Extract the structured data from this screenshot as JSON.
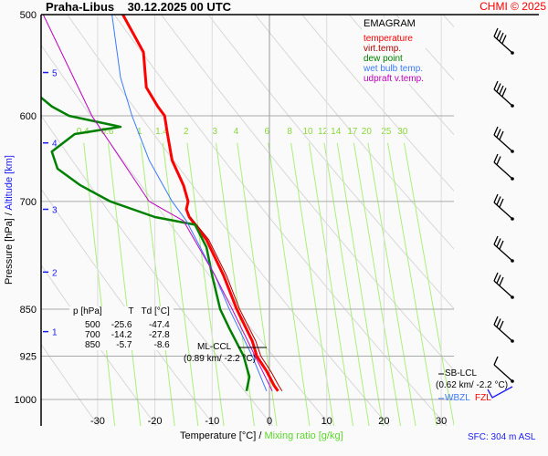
{
  "header": {
    "station": "Praha-Libus",
    "datetime": "30.12.2025 00 UTC",
    "copyright": "CHMI © 2025"
  },
  "footer": {
    "xlabel_temp": "Temperature [°C]",
    "separator": "/",
    "xlabel_mix": "Mixing ratio [g/kg]",
    "sfc": "SFC: 304 m ASL"
  },
  "ylabel": {
    "pressure": "Pressure [hPa]",
    "separator": "/",
    "altitude": "Altitude [km]"
  },
  "legend": {
    "title": "EMAGRAM",
    "items": [
      {
        "label": "temperature",
        "color": "#ff0000"
      },
      {
        "label": "virt.temp.",
        "color": "#b00000"
      },
      {
        "label": "dew point",
        "color": "#008000"
      },
      {
        "label": "wet bulb temp.",
        "color": "#3a7aff"
      },
      {
        "label": "udpraft v.temp.",
        "color": "#c000c0"
      }
    ]
  },
  "table": {
    "headers": [
      "p [hPa]",
      "T",
      "Td [°C]"
    ],
    "rows": [
      [
        "500",
        "-25.6",
        "-47.4"
      ],
      [
        "700",
        "-14.2",
        "-27.8"
      ],
      [
        "850",
        "-5.7",
        "-8.6"
      ]
    ]
  },
  "annotations": {
    "ml_ccl": "ML-CCL",
    "ml_ccl_val": "(0.89 km/ -2.2 °C)",
    "sb_lcl": "SB-LCL",
    "sb_lcl_val": "(0.62 km/ -2.2 °C)",
    "fzl": "FZL",
    "wbzl": "WBZL"
  },
  "chart_data": {
    "type": "line",
    "diagram": "emagram",
    "xlim": [
      -40,
      32
    ],
    "ylim_hpa": [
      500,
      1050
    ],
    "y_scale": "log",
    "x_ticks": [
      -30,
      -20,
      -10,
      0,
      10,
      20,
      30
    ],
    "y_ticks": [
      500,
      600,
      700,
      850,
      925,
      1000
    ],
    "altitude_ticks_km": [
      1,
      2,
      3,
      4,
      5
    ],
    "altitude_tick_pressures": [
      885,
      795,
      710,
      630,
      555
    ],
    "mixing_ratio_labels": [
      "0.4",
      "0.6",
      "1",
      "1.4",
      "2",
      "3",
      "4",
      "6",
      "8",
      "10",
      "12",
      "14",
      "17",
      "20",
      "25",
      "30"
    ],
    "series": [
      {
        "name": "temperature",
        "color": "#ff0000",
        "p": [
          500,
          535,
          570,
          590,
          600,
          620,
          650,
          680,
          700,
          710,
          720,
          750,
          800,
          850,
          900,
          925,
          950,
          975,
          985
        ],
        "t": [
          -25.6,
          -22,
          -21.5,
          -19.5,
          -18.3,
          -17.8,
          -17,
          -15,
          -14.2,
          -14.5,
          -14,
          -11,
          -8,
          -5.7,
          -3,
          -2.2,
          -0.5,
          0.8,
          1.5
        ]
      },
      {
        "name": "virt.temp.",
        "color": "#b00000",
        "p": [
          720,
          750,
          800,
          850,
          900,
          925,
          950,
          975,
          985
        ],
        "t": [
          -13.8,
          -10.6,
          -7.5,
          -5.2,
          -2.4,
          -1.5,
          0.2,
          1.6,
          2.2
        ]
      },
      {
        "name": "dew point",
        "color": "#008000",
        "p": [
          580,
          590,
          600,
          612,
          620,
          640,
          660,
          680,
          700,
          720,
          730,
          760,
          800,
          850,
          880,
          925,
          960,
          985
        ],
        "t": [
          -40,
          -38,
          -35,
          -26,
          -34,
          -38,
          -37,
          -33,
          -27.8,
          -20,
          -13,
          -11,
          -10,
          -8.6,
          -7,
          -4.5,
          -3.5,
          -4
        ]
      },
      {
        "name": "wet bulb temp.",
        "color": "#3a7aff",
        "p": [
          500,
          560,
          600,
          650,
          700,
          725,
          800,
          850,
          925,
          985
        ],
        "t": [
          -27.5,
          -26,
          -24,
          -21,
          -17,
          -14.5,
          -9.5,
          -7,
          -3,
          -0.5
        ]
      },
      {
        "name": "udpraft v.temp.",
        "color": "#c000c0",
        "p": [
          500,
          600,
          700,
          725,
          800,
          850,
          925,
          985
        ],
        "t": [
          -39.5,
          -31,
          -21,
          -15,
          -9.5,
          -6.5,
          -2.5,
          0.5
        ]
      }
    ]
  }
}
